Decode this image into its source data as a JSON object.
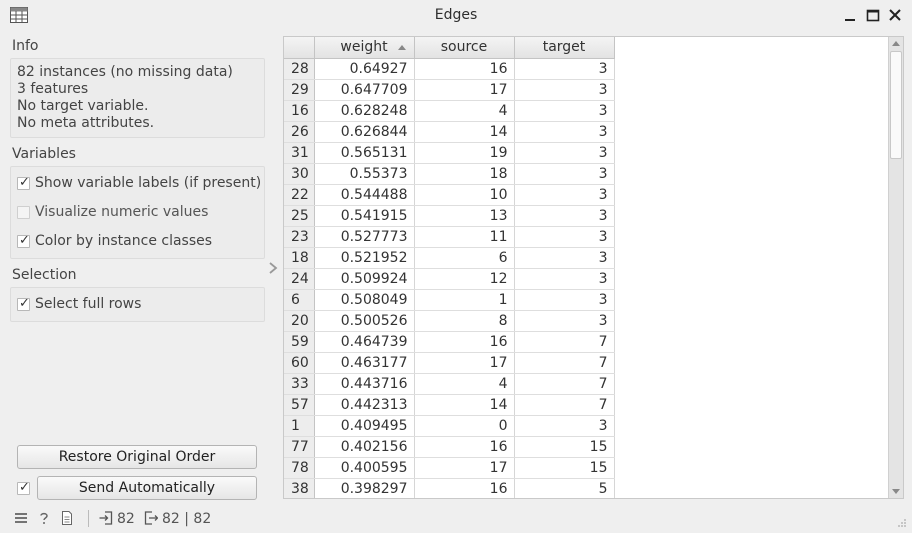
{
  "window": {
    "title": "Edges"
  },
  "info": {
    "label": "Info",
    "lines": [
      "82 instances (no missing data)",
      "3  features",
      "No target variable.",
      "No meta attributes."
    ]
  },
  "variables": {
    "label": "Variables",
    "options": [
      {
        "label": "Show variable labels (if present)",
        "checked": true,
        "enabled": true
      },
      {
        "label": "Visualize numeric values",
        "checked": false,
        "enabled": false
      },
      {
        "label": "Color by instance classes",
        "checked": true,
        "enabled": true
      }
    ]
  },
  "selection": {
    "label": "Selection",
    "options": [
      {
        "label": "Select full rows",
        "checked": true,
        "enabled": true
      }
    ]
  },
  "buttons": {
    "restore": "Restore Original Order",
    "send": "Send Automatically",
    "send_auto_checked": true
  },
  "table": {
    "columns": [
      "weight",
      "source",
      "target"
    ],
    "sort_column": "weight",
    "sort_direction": "descending",
    "rows": [
      {
        "id": "28",
        "weight": "0.64927",
        "source": "16",
        "target": "3"
      },
      {
        "id": "29",
        "weight": "0.647709",
        "source": "17",
        "target": "3"
      },
      {
        "id": "16",
        "weight": "0.628248",
        "source": "4",
        "target": "3"
      },
      {
        "id": "26",
        "weight": "0.626844",
        "source": "14",
        "target": "3"
      },
      {
        "id": "31",
        "weight": "0.565131",
        "source": "19",
        "target": "3"
      },
      {
        "id": "30",
        "weight": "0.55373",
        "source": "18",
        "target": "3"
      },
      {
        "id": "22",
        "weight": "0.544488",
        "source": "10",
        "target": "3"
      },
      {
        "id": "25",
        "weight": "0.541915",
        "source": "13",
        "target": "3"
      },
      {
        "id": "23",
        "weight": "0.527773",
        "source": "11",
        "target": "3"
      },
      {
        "id": "18",
        "weight": "0.521952",
        "source": "6",
        "target": "3"
      },
      {
        "id": "24",
        "weight": "0.509924",
        "source": "12",
        "target": "3"
      },
      {
        "id": "6",
        "weight": "0.508049",
        "source": "1",
        "target": "3"
      },
      {
        "id": "20",
        "weight": "0.500526",
        "source": "8",
        "target": "3"
      },
      {
        "id": "59",
        "weight": "0.464739",
        "source": "16",
        "target": "7"
      },
      {
        "id": "60",
        "weight": "0.463177",
        "source": "17",
        "target": "7"
      },
      {
        "id": "33",
        "weight": "0.443716",
        "source": "4",
        "target": "7"
      },
      {
        "id": "57",
        "weight": "0.442313",
        "source": "14",
        "target": "7"
      },
      {
        "id": "1",
        "weight": "0.409495",
        "source": "0",
        "target": "3"
      },
      {
        "id": "77",
        "weight": "0.402156",
        "source": "16",
        "target": "15"
      },
      {
        "id": "78",
        "weight": "0.400595",
        "source": "17",
        "target": "15"
      },
      {
        "id": "38",
        "weight": "0.398297",
        "source": "16",
        "target": "5"
      }
    ]
  },
  "status": {
    "input_count": "82",
    "output_count": "82 | 82"
  }
}
